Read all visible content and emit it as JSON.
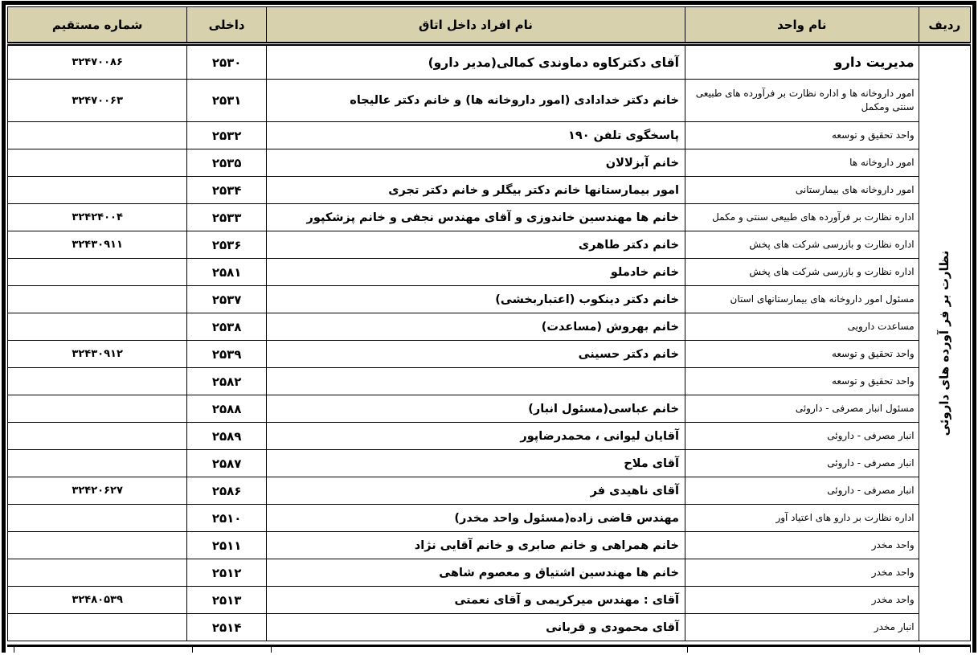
{
  "colors": {
    "header_bg": "#D8D1AE",
    "border": "#000000"
  },
  "header": {
    "radif": "ردیف",
    "unit": "نام واحد",
    "people": "نام افراد داخل اتاق",
    "ext": "داخلی",
    "direct": "شماره مستقیم"
  },
  "section_label": "نظارت بر فر آورده های داروئی",
  "rows": [
    {
      "unit": "مدیریت دارو",
      "people": "آقای دکترکاوه دماوندی کمالی(مدیر دارو)",
      "ext": "۲۵۳۰",
      "direct": "۳۲۴۷۰۰۸۶"
    },
    {
      "unit": "امور داروخانه ها و اداره نظارت بر فرآورده های طبیعی سنتی ومکمل",
      "people": "خانم دکتر خدادادی (امور داروخانه ها) و خانم دکتر عالیجاه",
      "ext": "۲۵۳۱",
      "direct": "۳۲۴۷۰۰۶۳"
    },
    {
      "unit": "واحد تحقیق و توسعه",
      "people": "پاسخگوی تلفن ۱۹۰",
      "ext": "۲۵۳۲",
      "direct": ""
    },
    {
      "unit": "امور داروخانه ها",
      "people": "خانم آبزلالان",
      "ext": "۲۵۳۵",
      "direct": ""
    },
    {
      "unit": "امور داروخانه های بیمارستانی",
      "people": "امور بیمارستانها خانم دکتر بیگلر و خانم دکتر تجری",
      "ext": "۲۵۳۴",
      "direct": ""
    },
    {
      "unit": "اداره نظارت بر فرآورده های طبیعی سنتی و مکمل",
      "people": "خانم ها مهندسین  خاندوزی و آقای مهندس نجفی و خانم پزشکپور",
      "ext": "۲۵۳۳",
      "direct": "۳۲۴۲۴۰۰۴"
    },
    {
      "unit": "اداره نظارت و بازرسی شرکت های پخش",
      "people": "خانم دکتر طاهری",
      "ext": "۲۵۳۶",
      "direct": "۳۲۴۳۰۹۱۱"
    },
    {
      "unit": "اداره نظارت و بازرسی شرکت های پخش",
      "people": "خانم خادملو",
      "ext": "۲۵۸۱",
      "direct": ""
    },
    {
      "unit": "مسئول امور داروخانه های بیمارستانهای استان",
      "people": "خانم دکتر دینکوب  (اعتباربخشی)",
      "ext": "۲۵۳۷",
      "direct": ""
    },
    {
      "unit": "مساعدت دارویی",
      "people": "خانم بهروش (مساعدت)",
      "ext": "۲۵۳۸",
      "direct": ""
    },
    {
      "unit": "واحد تحقیق و توسعه",
      "people": "خانم دکتر حسینی",
      "ext": "۲۵۳۹",
      "direct": "۳۲۴۳۰۹۱۲"
    },
    {
      "unit": "واحد تحقیق و توسعه",
      "people": "",
      "ext": "۲۵۸۲",
      "direct": ""
    },
    {
      "unit": "مسئول انبار مصرفی  - داروئی",
      "people": "خانم عباسی(مسئول  انبار)",
      "ext": "۲۵۸۸",
      "direct": ""
    },
    {
      "unit": "انبار مصرفی  - داروئی",
      "people": "آقایان لیوانی ، محمدرضاپور",
      "ext": "۲۵۸۹",
      "direct": ""
    },
    {
      "unit": "انبار مصرفی  - داروئی",
      "people": "آقای ملاح",
      "ext": "۲۵۸۷",
      "direct": ""
    },
    {
      "unit": "انبار مصرفی  - داروئی",
      "people": "آقای ناهیدی فر",
      "ext": "۲۵۸۶",
      "direct": "۳۲۴۲۰۶۲۷"
    },
    {
      "unit": "اداره  نظارت بر دارو های اعتیاد آور",
      "people": "مهندس  قاضی زاده(مسئول واحد مخدر)",
      "ext": "۲۵۱۰",
      "direct": ""
    },
    {
      "unit": "واحد مخدر",
      "people": "خانم همراهی و خانم صابری و خانم آقایی نژاد",
      "ext": "۲۵۱۱",
      "direct": ""
    },
    {
      "unit": "واحد مخدر",
      "people": "خانم ها مهندسین   اشتیاق و معصوم شاهی",
      "ext": "۲۵۱۲",
      "direct": ""
    },
    {
      "unit": "واحد مخدر",
      "people": "آقای : مهندس میرکریمی  و آقای نعمتی",
      "ext": "۲۵۱۳",
      "direct": "۳۲۴۸۰۵۳۹"
    },
    {
      "unit": "انبار مخدر",
      "people": "آقای محمودی و قربانی",
      "ext": "۲۵۱۴",
      "direct": ""
    }
  ]
}
